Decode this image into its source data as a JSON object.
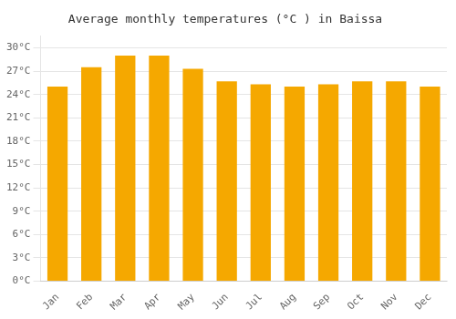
{
  "chart_data": {
    "type": "bar",
    "title": "Average monthly temperatures (°C ) in Baissa",
    "categories": [
      "Jan",
      "Feb",
      "Mar",
      "Apr",
      "May",
      "Jun",
      "Jul",
      "Aug",
      "Sep",
      "Oct",
      "Nov",
      "Dec"
    ],
    "values": [
      25.0,
      27.5,
      29.0,
      29.0,
      27.3,
      25.7,
      25.3,
      25.0,
      25.3,
      25.7,
      25.7,
      25.0
    ],
    "color": "#F5A800",
    "ylim": [
      0,
      31.5
    ],
    "yticks": [
      {
        "value": 0,
        "label": "0°C"
      },
      {
        "value": 3,
        "label": "3°C"
      },
      {
        "value": 6,
        "label": "6°C"
      },
      {
        "value": 9,
        "label": "9°C"
      },
      {
        "value": 12,
        "label": "12°C"
      },
      {
        "value": 15,
        "label": "15°C"
      },
      {
        "value": 18,
        "label": "18°C"
      },
      {
        "value": 21,
        "label": "21°C"
      },
      {
        "value": 24,
        "label": "24°C"
      },
      {
        "value": 27,
        "label": "27°C"
      },
      {
        "value": 30,
        "label": "30°C"
      }
    ],
    "grid": true
  }
}
